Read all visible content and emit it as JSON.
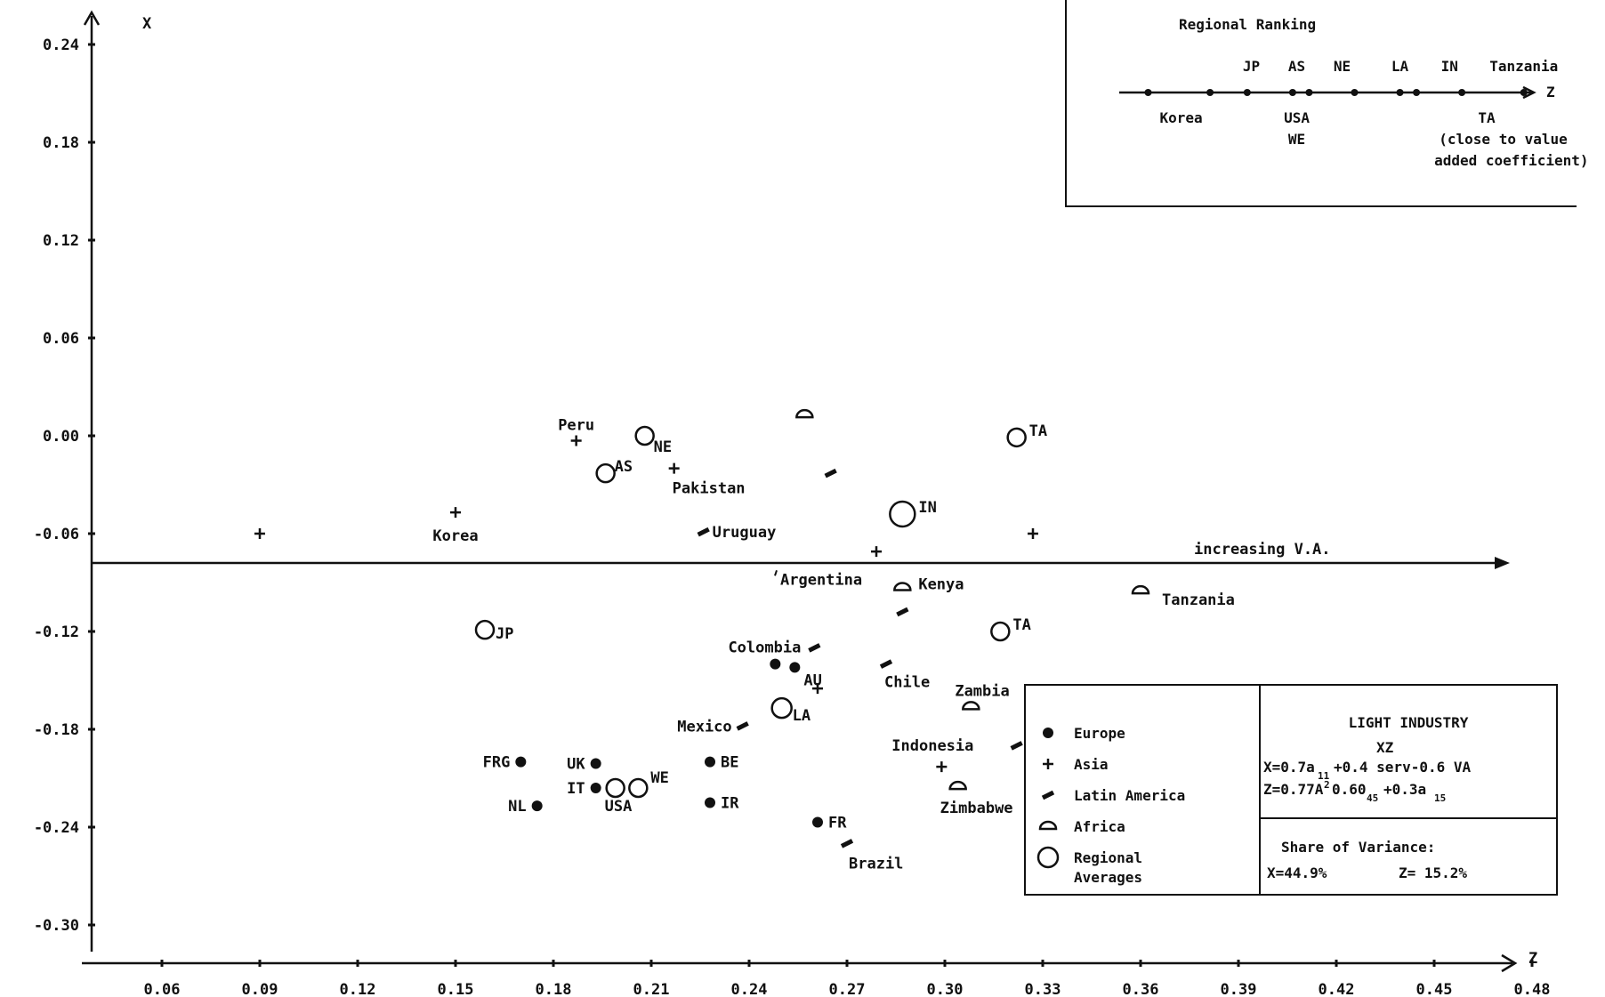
{
  "chart_data": {
    "type": "scatter",
    "x_axis_label": "Z",
    "y_axis_label": "X",
    "xlim": [
      0.03,
      0.48
    ],
    "ylim": [
      -0.32,
      0.25
    ],
    "x_ticks": [
      {
        "v": 0.06,
        "t": "0.06"
      },
      {
        "v": 0.09,
        "t": "0.09"
      },
      {
        "v": 0.12,
        "t": "0.12"
      },
      {
        "v": 0.15,
        "t": "0.15"
      },
      {
        "v": 0.18,
        "t": "0.18"
      },
      {
        "v": 0.21,
        "t": "0.21"
      },
      {
        "v": 0.24,
        "t": "0.24"
      },
      {
        "v": 0.27,
        "t": "0.27"
      },
      {
        "v": 0.3,
        "t": "0.30"
      },
      {
        "v": 0.33,
        "t": "0.33"
      },
      {
        "v": 0.36,
        "t": "0.36"
      },
      {
        "v": 0.39,
        "t": "0.39"
      },
      {
        "v": 0.42,
        "t": "0.42"
      },
      {
        "v": 0.45,
        "t": "0.45"
      },
      {
        "v": 0.48,
        "t": "0.48"
      }
    ],
    "y_ticks": [
      {
        "v": 0.24,
        "t": "0.24"
      },
      {
        "v": 0.18,
        "t": "0.18"
      },
      {
        "v": 0.12,
        "t": "0.12"
      },
      {
        "v": 0.06,
        "t": "0.06"
      },
      {
        "v": 0.0,
        "t": "0.00"
      },
      {
        "v": -0.06,
        "t": "-0.06"
      },
      {
        "v": -0.12,
        "t": "-0.12"
      },
      {
        "v": -0.18,
        "t": "-0.18"
      },
      {
        "v": -0.24,
        "t": "-0.24"
      },
      {
        "v": -0.3,
        "t": "-0.30"
      }
    ],
    "reference_line": {
      "y": -0.078,
      "label": "increasing V.A."
    },
    "series": [
      {
        "name": "Europe",
        "marker": "dot",
        "points": [
          {
            "label": "FRG",
            "x": 0.17,
            "y": -0.2
          },
          {
            "label": "UK",
            "x": 0.193,
            "y": -0.201
          },
          {
            "label": "IT",
            "x": 0.193,
            "y": -0.216
          },
          {
            "label": "NL",
            "x": 0.175,
            "y": -0.227
          },
          {
            "label": "BE",
            "x": 0.228,
            "y": -0.2
          },
          {
            "label": "IR",
            "x": 0.228,
            "y": -0.225
          },
          {
            "label": "FR",
            "x": 0.261,
            "y": -0.237
          },
          {
            "label": "AU",
            "x": 0.254,
            "y": -0.142
          },
          {
            "label": "",
            "x": 0.248,
            "y": -0.14
          }
        ]
      },
      {
        "name": "Asia",
        "marker": "plus",
        "points": [
          {
            "label": "Korea",
            "x": 0.15,
            "y": -0.047
          },
          {
            "label": "",
            "x": 0.09,
            "y": -0.06
          },
          {
            "label": "Peru",
            "x": 0.187,
            "y": -0.003
          },
          {
            "label": "Pakistan",
            "x": 0.217,
            "y": -0.02
          },
          {
            "label": "",
            "x": 0.261,
            "y": -0.155
          },
          {
            "label": "",
            "x": 0.279,
            "y": -0.071
          },
          {
            "label": "",
            "x": 0.327,
            "y": -0.06
          },
          {
            "label": "Indonesia",
            "x": 0.299,
            "y": -0.203
          }
        ]
      },
      {
        "name": "Latin America",
        "marker": "dash",
        "points": [
          {
            "label": "Uruguay",
            "x": 0.226,
            "y": -0.059
          },
          {
            "label": "",
            "x": 0.265,
            "y": -0.023
          },
          {
            "label": "Colombia",
            "x": 0.26,
            "y": -0.13
          },
          {
            "label": "Mexico",
            "x": 0.238,
            "y": -0.178
          },
          {
            "label": "Chile",
            "x": 0.282,
            "y": -0.14
          },
          {
            "label": "",
            "x": 0.287,
            "y": -0.108
          },
          {
            "label": "",
            "x": 0.322,
            "y": -0.19
          },
          {
            "label": "Brazil",
            "x": 0.27,
            "y": -0.25
          }
        ]
      },
      {
        "name": "Africa",
        "marker": "halfcircle",
        "points": [
          {
            "label": "",
            "x": 0.257,
            "y": 0.013
          },
          {
            "label": "Kenya",
            "x": 0.287,
            "y": -0.093
          },
          {
            "label": "Tanzania",
            "x": 0.36,
            "y": -0.095
          },
          {
            "label": "Zambia",
            "x": 0.308,
            "y": -0.166
          },
          {
            "label": "Zimbabwe",
            "x": 0.304,
            "y": -0.215
          }
        ]
      },
      {
        "name": "Regional Averages",
        "marker": "circle",
        "points": [
          {
            "label": "NE",
            "x": 0.208,
            "y": 0.0,
            "r": 10
          },
          {
            "label": "AS",
            "x": 0.196,
            "y": -0.023,
            "r": 10
          },
          {
            "label": "TA",
            "x": 0.322,
            "y": -0.001,
            "r": 10
          },
          {
            "label": "IN",
            "x": 0.287,
            "y": -0.048,
            "r": 14
          },
          {
            "label": "JP",
            "x": 0.159,
            "y": -0.119,
            "r": 10
          },
          {
            "label": "TA",
            "x": 0.317,
            "y": -0.12,
            "r": 10
          },
          {
            "label": "LA",
            "x": 0.25,
            "y": -0.167,
            "r": 11
          },
          {
            "label": "USA",
            "x": 0.199,
            "y": -0.216,
            "r": 10
          },
          {
            "label": "WE",
            "x": 0.206,
            "y": -0.216,
            "r": 10
          }
        ]
      }
    ]
  },
  "ranking_box": {
    "title": "Regional Ranking",
    "axis_end_label": "Z",
    "markers": [
      0.07,
      0.22,
      0.31,
      0.42,
      0.46,
      0.57,
      0.68,
      0.72,
      0.83,
      0.98
    ],
    "labels_above": [
      {
        "t": "JP",
        "pos": 0.32
      },
      {
        "t": "AS",
        "pos": 0.43
      },
      {
        "t": "NE",
        "pos": 0.54
      },
      {
        "t": "LA",
        "pos": 0.68
      },
      {
        "t": "IN",
        "pos": 0.8
      },
      {
        "t": "Tanzania",
        "pos": 0.98
      }
    ],
    "labels_below": [
      {
        "t": "Korea",
        "pos": 0.15,
        "row": 0
      },
      {
        "t": "USA",
        "pos": 0.43,
        "row": 0
      },
      {
        "t": "WE",
        "pos": 0.43,
        "row": 1
      },
      {
        "t": "TA",
        "pos": 0.89,
        "row": 0
      },
      {
        "t": "(close to value",
        "pos": 0.93,
        "row": 1
      },
      {
        "t": "added coefficient)",
        "pos": 0.95,
        "row": 2
      }
    ]
  },
  "legend": {
    "items": [
      {
        "marker": "dot",
        "label": "Europe"
      },
      {
        "marker": "plus",
        "label": "Asia"
      },
      {
        "marker": "dash",
        "label": "Latin America"
      },
      {
        "marker": "halfcircle",
        "label": "Africa"
      },
      {
        "marker": "circle",
        "label": "Regional",
        "label2": "Averages"
      }
    ]
  },
  "info_box": {
    "title": "LIGHT INDUSTRY",
    "formula_head": "XZ",
    "formula_x": "X=0.7a",
    "formula_x_rest": "+0.4 serv-0.6 VA",
    "formula_z": "Z=0.77A",
    "formula_z_rest": "0.60",
    "formula_z_end": "+0.3a",
    "sub_1": "11",
    "sub_2": "45",
    "sub_3": "15",
    "variance_title": "Share of Variance:",
    "variance_x": "X=44.9%",
    "variance_z": "Z= 15.2%"
  }
}
